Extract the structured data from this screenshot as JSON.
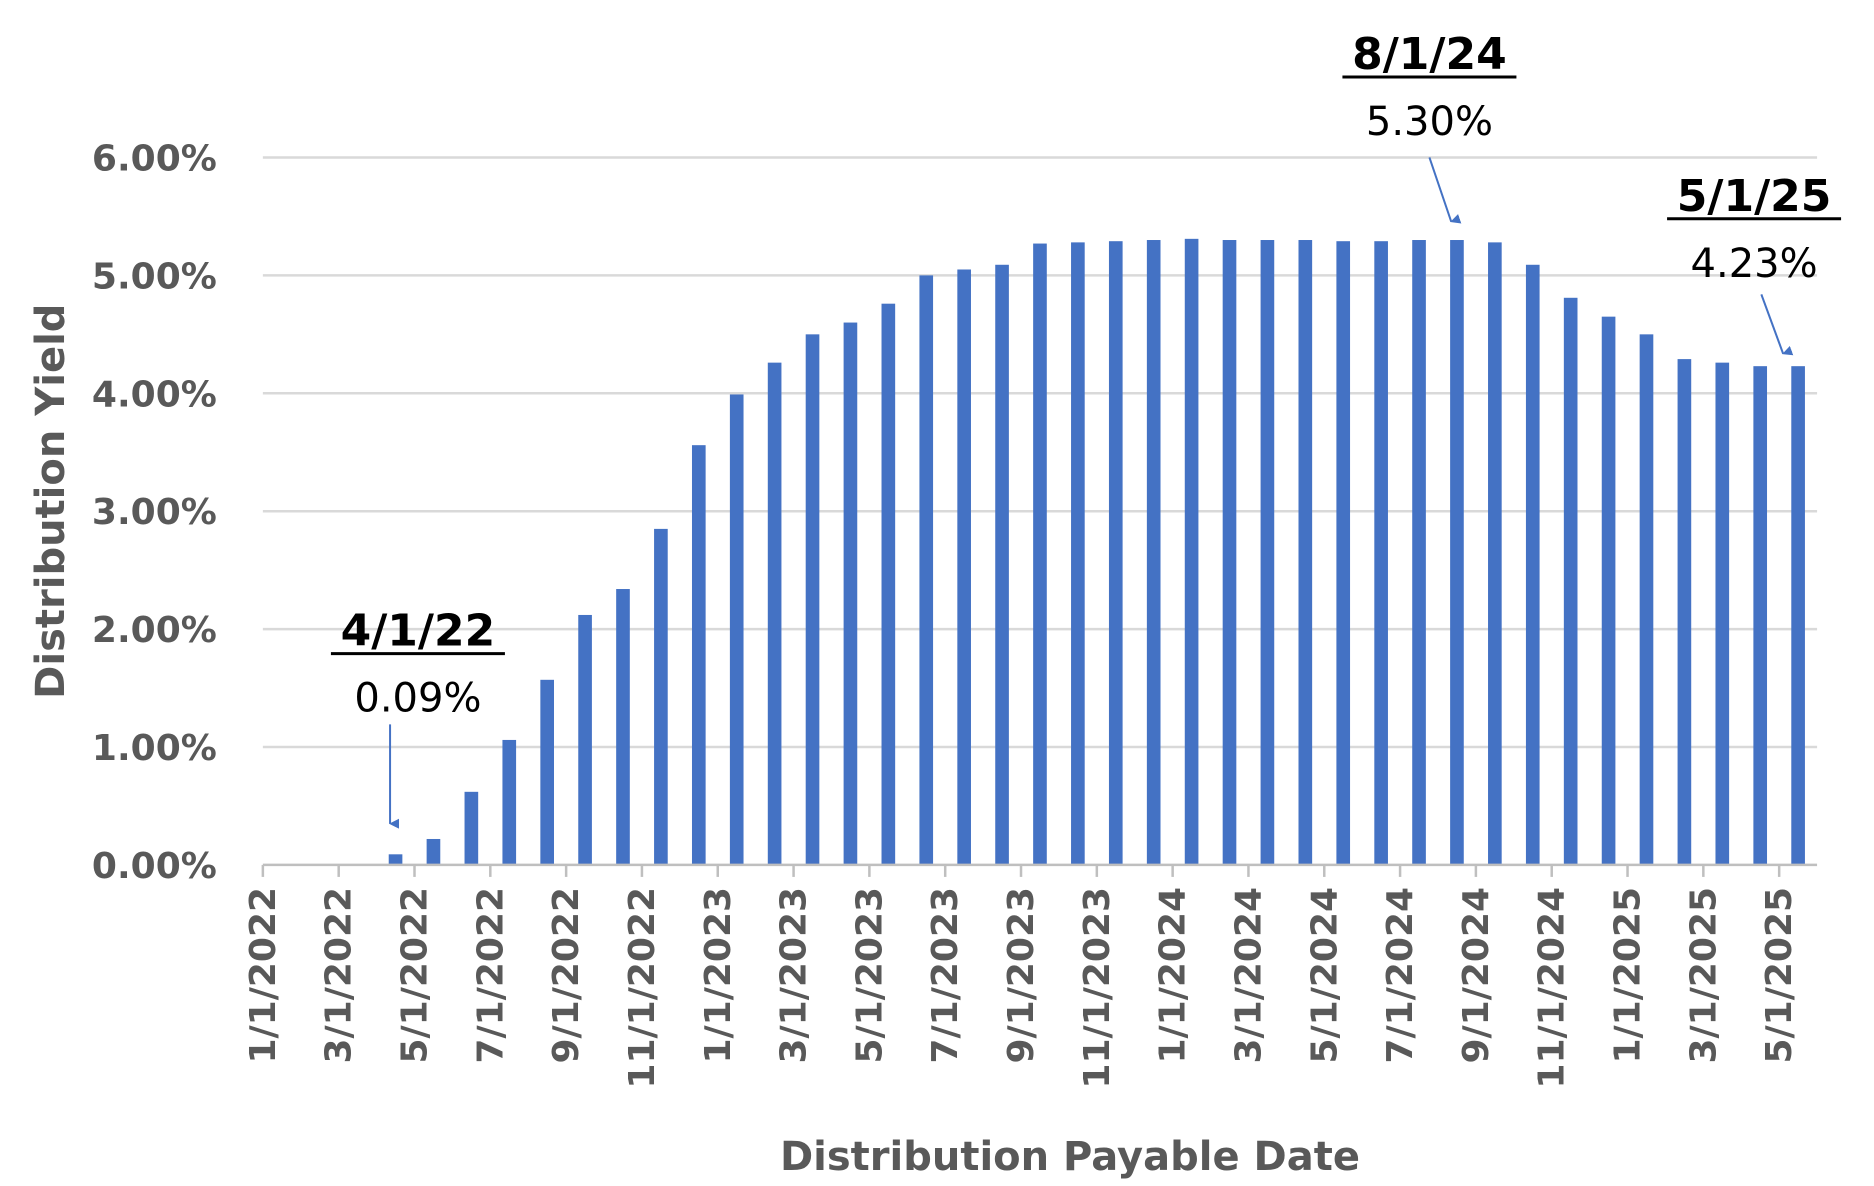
{
  "chart_data": {
    "type": "bar",
    "title": "",
    "xlabel": "Distribution Payable Date",
    "ylabel": "Distribution Yield",
    "ylim": [
      0,
      6
    ],
    "y_ticks": [
      "0.00%",
      "1.00%",
      "2.00%",
      "3.00%",
      "4.00%",
      "5.00%",
      "6.00%"
    ],
    "x_ticks": [
      "1/1/2022",
      "3/1/2022",
      "5/1/2022",
      "7/1/2022",
      "9/1/2022",
      "11/1/2022",
      "1/1/2023",
      "3/1/2023",
      "5/1/2023",
      "7/1/2023",
      "9/1/2023",
      "11/1/2023",
      "1/1/2024",
      "3/1/2024",
      "5/1/2024",
      "7/1/2024",
      "9/1/2024",
      "11/1/2024",
      "1/1/2025",
      "3/1/2025",
      "5/1/2025"
    ],
    "grid": true,
    "bar_color": "#4472C4",
    "x": [
      "2022-04-01",
      "2022-05-01",
      "2022-06-01",
      "2022-07-01",
      "2022-08-01",
      "2022-09-01",
      "2022-10-01",
      "2022-11-01",
      "2022-12-01",
      "2023-01-01",
      "2023-02-01",
      "2023-03-01",
      "2023-04-01",
      "2023-05-01",
      "2023-06-01",
      "2023-07-01",
      "2023-08-01",
      "2023-09-01",
      "2023-10-01",
      "2023-11-01",
      "2023-12-01",
      "2024-01-01",
      "2024-02-01",
      "2024-03-01",
      "2024-04-01",
      "2024-05-01",
      "2024-06-01",
      "2024-07-01",
      "2024-08-01",
      "2024-09-01",
      "2024-10-01",
      "2024-11-01",
      "2024-12-01",
      "2025-01-01",
      "2025-02-01",
      "2025-03-01",
      "2025-04-01",
      "2025-05-01"
    ],
    "values": [
      0.09,
      0.22,
      0.62,
      1.06,
      1.57,
      2.12,
      2.34,
      2.85,
      3.56,
      3.99,
      4.26,
      4.5,
      4.6,
      4.76,
      5.0,
      5.05,
      5.09,
      5.27,
      5.28,
      5.29,
      5.3,
      5.31,
      5.3,
      5.3,
      5.3,
      5.29,
      5.29,
      5.3,
      5.3,
      5.28,
      5.09,
      4.81,
      4.65,
      4.5,
      4.29,
      4.26,
      4.23,
      4.23
    ],
    "annotations": [
      {
        "x": "2022-04-01",
        "date_label": "4/1/22",
        "value_label": "0.09%"
      },
      {
        "x": "2024-08-01",
        "date_label": "8/1/24",
        "value_label": "5.30%"
      },
      {
        "x": "2025-05-01",
        "date_label": "5/1/25",
        "value_label": "4.23%"
      }
    ]
  }
}
